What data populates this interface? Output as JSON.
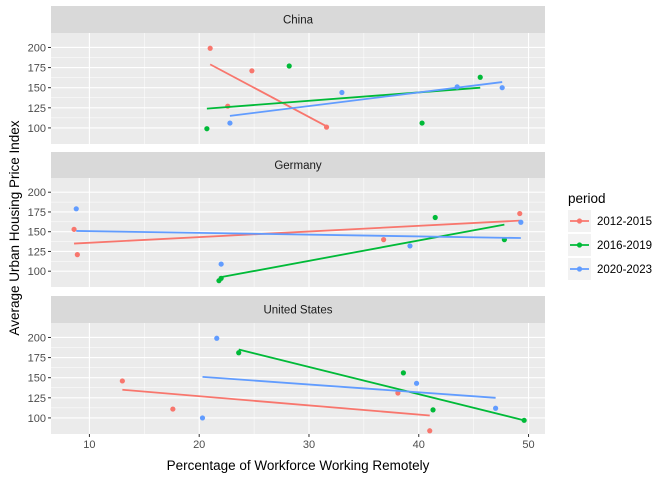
{
  "chart_data": {
    "type": "scatter",
    "facet_by": "country",
    "xlabel": "Percentage of Workforce Working Remotely",
    "ylabel": "Average Urban Housing Price Index",
    "xlim": [
      6.5,
      51.5
    ],
    "ylim": [
      80,
      218
    ],
    "xticks": [
      10,
      20,
      30,
      40,
      50
    ],
    "yticks": [
      100,
      125,
      150,
      175,
      200
    ],
    "grid": true,
    "legend": {
      "title": "period",
      "position": "right",
      "entries": [
        "2012-2015",
        "2016-2019",
        "2020-2023"
      ]
    },
    "colors": {
      "2012-2015": "#F8766D",
      "2016-2019": "#00BA38",
      "2020-2023": "#619CFF",
      "panel_bg": "#EBEBEB",
      "strip_bg": "#D9D9D9",
      "grid": "#FFFFFF"
    },
    "panels": [
      {
        "name": "China",
        "series": [
          {
            "period": "2012-2015",
            "points": [
              [
                21.0,
                199
              ],
              [
                24.8,
                171
              ],
              [
                22.6,
                127
              ],
              [
                31.6,
                101
              ]
            ],
            "trend": [
              [
                21.0,
                179
              ],
              [
                31.6,
                102
              ]
            ]
          },
          {
            "period": "2016-2019",
            "points": [
              [
                28.2,
                177
              ],
              [
                20.7,
                99
              ],
              [
                40.3,
                106
              ],
              [
                45.6,
                163
              ]
            ],
            "trend": [
              [
                20.7,
                124
              ],
              [
                45.6,
                150
              ]
            ]
          },
          {
            "period": "2020-2023",
            "points": [
              [
                22.8,
                106
              ],
              [
                33.0,
                144
              ],
              [
                43.5,
                151
              ],
              [
                47.6,
                150
              ]
            ],
            "trend": [
              [
                22.8,
                115
              ],
              [
                47.6,
                157
              ]
            ]
          }
        ]
      },
      {
        "name": "Germany",
        "series": [
          {
            "period": "2012-2015",
            "points": [
              [
                8.6,
                153
              ],
              [
                8.9,
                121
              ],
              [
                36.8,
                140
              ],
              [
                49.2,
                173
              ]
            ],
            "trend": [
              [
                8.6,
                135
              ],
              [
                49.2,
                164
              ]
            ]
          },
          {
            "period": "2016-2019",
            "points": [
              [
                21.8,
                88
              ],
              [
                22.0,
                91
              ],
              [
                41.5,
                168
              ],
              [
                47.8,
                140
              ]
            ],
            "trend": [
              [
                21.8,
                92
              ],
              [
                47.8,
                159
              ]
            ]
          },
          {
            "period": "2020-2023",
            "points": [
              [
                8.8,
                179
              ],
              [
                22.0,
                109
              ],
              [
                39.2,
                132
              ],
              [
                49.3,
                162
              ]
            ],
            "trend": [
              [
                8.8,
                151
              ],
              [
                49.3,
                142
              ]
            ]
          }
        ]
      },
      {
        "name": "United States",
        "series": [
          {
            "period": "2012-2015",
            "points": [
              [
                13.0,
                146
              ],
              [
                17.6,
                111
              ],
              [
                38.1,
                131
              ],
              [
                41.0,
                84
              ]
            ],
            "trend": [
              [
                13.0,
                135
              ],
              [
                41.0,
                103
              ]
            ]
          },
          {
            "period": "2016-2019",
            "points": [
              [
                23.6,
                181
              ],
              [
                38.6,
                156
              ],
              [
                41.3,
                110
              ],
              [
                49.6,
                97
              ]
            ],
            "trend": [
              [
                23.6,
                185
              ],
              [
                49.6,
                97
              ]
            ]
          },
          {
            "period": "2020-2023",
            "points": [
              [
                21.6,
                199
              ],
              [
                20.3,
                100
              ],
              [
                39.8,
                143
              ],
              [
                47.0,
                112
              ]
            ],
            "trend": [
              [
                20.3,
                151
              ],
              [
                47.0,
                125
              ]
            ]
          }
        ]
      }
    ]
  }
}
